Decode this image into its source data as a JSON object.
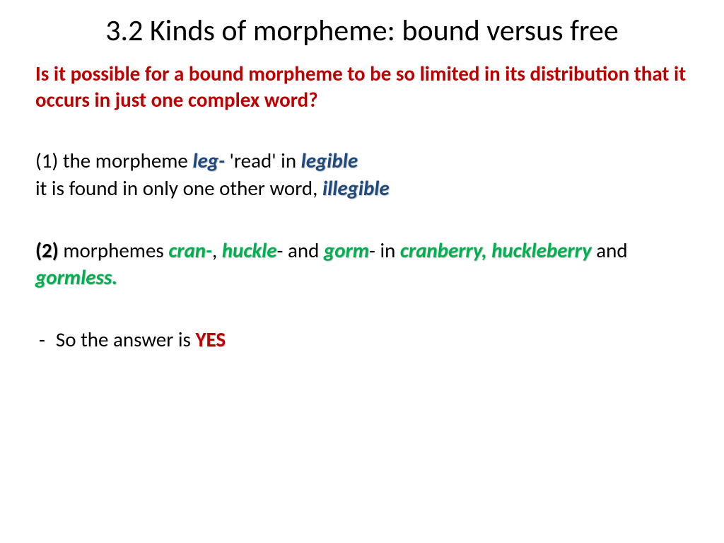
{
  "title": "3.2 Kinds of morpheme: bound versus free",
  "question": "Is it possible for a bound morpheme to be so limited in its distribution that it occurs in just one complex word?",
  "example1": {
    "prefix": "(1) the morpheme ",
    "morpheme": "leg-",
    "mid": " 'read' in ",
    "word": "legible",
    "line2_pre": "it is found in only one other word, ",
    "line2_word": "illegible"
  },
  "example2": {
    "num": "(2)",
    "t1": " morphemes ",
    "m1": "cran-",
    "t2": ", ",
    "m2": "huckle",
    "t3": "- and ",
    "m3": "gorm",
    "t4": "- in ",
    "w1": "cranberry, huckleberry",
    "t5": " and ",
    "w2": "gormless."
  },
  "answer": {
    "dash": "-",
    "text": "So the answer is ",
    "yes": "YES"
  },
  "colors": {
    "title": "#000000",
    "question": "#c00000",
    "body": "#000000",
    "blue_emphasis": "#1f497d",
    "green_emphasis": "#00b050",
    "yes": "#c00000",
    "background": "#ffffff"
  },
  "typography": {
    "title_fontsize": 42,
    "body_fontsize": 29,
    "font_family": "Calibri"
  }
}
